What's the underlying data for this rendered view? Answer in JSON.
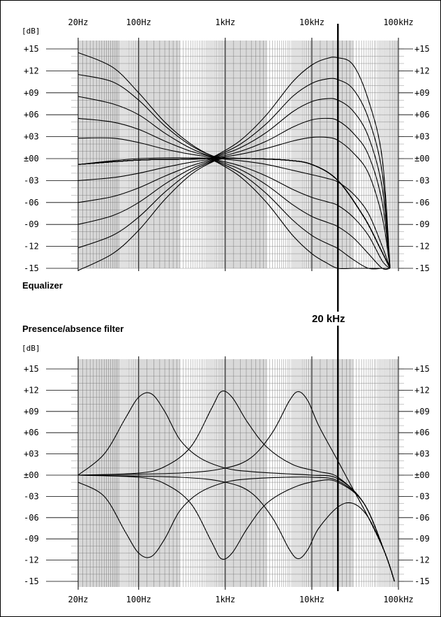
{
  "chart_data": [
    {
      "type": "line",
      "title": "Equalizer",
      "ylabel": "[dB]",
      "xscale": "log",
      "x_tick_labels": [
        "20Hz",
        "100Hz",
        "1kHz",
        "10kHz",
        "100kHz"
      ],
      "x_ticks": [
        20,
        100,
        1000,
        10000,
        100000
      ],
      "xlim": [
        20,
        100000
      ],
      "y_tick_labels": [
        "+15",
        "+12",
        "+09",
        "+06",
        "+03",
        "±00",
        "-03",
        "-06",
        "-09",
        "-12",
        "-15"
      ],
      "y_ticks": [
        15,
        12,
        9,
        6,
        3,
        0,
        -3,
        -6,
        -9,
        -12,
        -15
      ],
      "ylim": [
        -15,
        15
      ],
      "grid": true,
      "bass_curves": [
        {
          "x": [
            20,
            50,
            100,
            200,
            400,
            700,
            1000,
            2000,
            5000,
            10000,
            20000,
            40000,
            60000,
            80000
          ],
          "y": [
            14.5,
            12.5,
            9.0,
            5.0,
            2.0,
            0.4,
            0.1,
            0.0,
            -0.2,
            -0.8,
            -3.0,
            -8.0,
            -12.0,
            -15.0
          ]
        },
        {
          "x": [
            20,
            50,
            100,
            200,
            400,
            700,
            1000,
            2000,
            5000,
            10000,
            20000,
            40000,
            60000,
            80000
          ],
          "y": [
            11.5,
            10.5,
            8.0,
            4.5,
            1.8,
            0.4,
            0.1,
            0.0,
            -0.2,
            -0.8,
            -3.0,
            -8.0,
            -12.0,
            -15.0
          ]
        },
        {
          "x": [
            20,
            50,
            100,
            200,
            400,
            700,
            1000,
            2000,
            5000,
            10000,
            20000,
            40000,
            60000,
            80000
          ],
          "y": [
            8.5,
            7.5,
            6.0,
            3.5,
            1.4,
            0.3,
            0.1,
            0.0,
            -0.2,
            -0.8,
            -3.0,
            -8.0,
            -12.0,
            -15.0
          ]
        },
        {
          "x": [
            20,
            50,
            100,
            200,
            400,
            700,
            1000,
            2000,
            5000,
            10000,
            20000,
            40000,
            60000,
            80000
          ],
          "y": [
            5.5,
            5.0,
            4.0,
            2.4,
            1.0,
            0.3,
            0.1,
            0.0,
            -0.2,
            -0.8,
            -3.0,
            -8.0,
            -12.0,
            -15.0
          ]
        },
        {
          "x": [
            20,
            50,
            100,
            200,
            400,
            700,
            1000,
            2000,
            5000,
            10000,
            20000,
            40000,
            60000,
            80000
          ],
          "y": [
            2.8,
            2.8,
            2.2,
            1.3,
            0.6,
            0.2,
            0.1,
            0.0,
            -0.2,
            -0.8,
            -3.0,
            -8.0,
            -12.0,
            -15.0
          ]
        },
        {
          "x": [
            20,
            50,
            100,
            200,
            400,
            700,
            1000,
            2000,
            5000,
            10000,
            20000,
            40000,
            60000,
            80000
          ],
          "y": [
            -0.8,
            -0.3,
            0.0,
            0.1,
            0.1,
            0.1,
            0.1,
            0.0,
            -0.2,
            -0.8,
            -3.0,
            -8.0,
            -12.0,
            -15.0
          ]
        },
        {
          "x": [
            20,
            50,
            100,
            200,
            400,
            700,
            1000,
            2000,
            5000,
            10000,
            20000,
            40000,
            60000,
            80000
          ],
          "y": [
            -3.0,
            -2.6,
            -2.0,
            -1.2,
            -0.5,
            -0.1,
            0.0,
            0.0,
            -0.2,
            -0.8,
            -3.0,
            -8.0,
            -12.0,
            -15.0
          ]
        },
        {
          "x": [
            20,
            50,
            100,
            200,
            400,
            700,
            1000,
            2000,
            5000,
            10000,
            20000,
            40000,
            60000,
            80000
          ],
          "y": [
            -6.0,
            -5.2,
            -4.0,
            -2.4,
            -1.0,
            -0.2,
            0.0,
            0.0,
            -0.2,
            -0.8,
            -3.0,
            -8.0,
            -12.0,
            -15.0
          ]
        },
        {
          "x": [
            20,
            50,
            100,
            200,
            400,
            700,
            1000,
            2000,
            5000,
            10000,
            20000,
            40000,
            60000,
            80000
          ],
          "y": [
            -9.0,
            -7.8,
            -6.0,
            -3.5,
            -1.4,
            -0.3,
            0.0,
            0.0,
            -0.2,
            -0.8,
            -3.0,
            -8.0,
            -12.0,
            -15.0
          ]
        },
        {
          "x": [
            20,
            50,
            100,
            200,
            400,
            700,
            1000,
            2000,
            5000,
            10000,
            20000,
            40000,
            60000,
            80000
          ],
          "y": [
            -12.2,
            -10.5,
            -8.0,
            -4.6,
            -1.8,
            -0.4,
            0.0,
            0.0,
            -0.2,
            -0.8,
            -3.0,
            -8.0,
            -12.0,
            -15.0
          ]
        },
        {
          "x": [
            20,
            50,
            100,
            200,
            400,
            700,
            1000,
            2000,
            5000,
            10000,
            20000,
            40000,
            60000,
            80000
          ],
          "y": [
            -15.3,
            -13.0,
            -9.8,
            -5.6,
            -2.2,
            -0.5,
            0.0,
            0.0,
            -0.2,
            -0.8,
            -3.0,
            -8.0,
            -12.0,
            -15.0
          ]
        }
      ],
      "treble_curves": [
        {
          "x": [
            20,
            100,
            300,
            600,
            800,
            1500,
            3000,
            6000,
            10000,
            15000,
            20000,
            30000,
            45000,
            65000,
            80000
          ],
          "y": [
            -0.8,
            -0.2,
            -0.1,
            0.0,
            0.5,
            2.5,
            6.0,
            10.5,
            12.8,
            13.7,
            13.8,
            12.8,
            8.0,
            0.0,
            -15.0
          ]
        },
        {
          "x": [
            20,
            100,
            300,
            600,
            800,
            1500,
            3000,
            6000,
            10000,
            15000,
            20000,
            30000,
            45000,
            65000,
            80000
          ],
          "y": [
            -0.8,
            -0.2,
            -0.1,
            0.0,
            0.4,
            2.0,
            4.8,
            8.5,
            10.3,
            10.9,
            10.8,
            9.5,
            5.5,
            -2.0,
            -15.0
          ]
        },
        {
          "x": [
            20,
            100,
            300,
            600,
            800,
            1500,
            3000,
            6000,
            10000,
            15000,
            20000,
            30000,
            45000,
            65000,
            80000
          ],
          "y": [
            -0.8,
            -0.2,
            -0.1,
            0.0,
            0.3,
            1.5,
            3.6,
            6.4,
            7.8,
            8.2,
            8.0,
            6.5,
            3.0,
            -4.0,
            -15.0
          ]
        },
        {
          "x": [
            20,
            100,
            300,
            600,
            800,
            1500,
            3000,
            6000,
            10000,
            15000,
            20000,
            30000,
            45000,
            65000,
            80000
          ],
          "y": [
            -0.8,
            -0.2,
            -0.1,
            0.0,
            0.2,
            1.0,
            2.4,
            4.3,
            5.3,
            5.5,
            5.2,
            3.5,
            0.5,
            -6.0,
            -15.0
          ]
        },
        {
          "x": [
            20,
            100,
            300,
            600,
            800,
            1500,
            3000,
            6000,
            10000,
            15000,
            20000,
            30000,
            45000,
            65000,
            80000
          ],
          "y": [
            -0.8,
            -0.2,
            -0.1,
            0.0,
            0.1,
            0.6,
            1.4,
            2.4,
            2.9,
            2.9,
            2.5,
            0.8,
            -2.0,
            -8.0,
            -15.0
          ]
        },
        {
          "x": [
            20,
            100,
            300,
            600,
            800,
            1500,
            3000,
            6000,
            10000,
            15000,
            20000,
            30000,
            45000,
            65000,
            80000
          ],
          "y": [
            -0.8,
            -0.2,
            -0.1,
            0.0,
            0.0,
            -0.3,
            -0.8,
            -1.6,
            -2.2,
            -2.7,
            -3.2,
            -4.8,
            -7.5,
            -12.0,
            -15.0
          ]
        },
        {
          "x": [
            20,
            100,
            300,
            600,
            800,
            1500,
            3000,
            6000,
            10000,
            15000,
            20000,
            30000,
            45000,
            65000,
            80000
          ],
          "y": [
            -0.8,
            -0.2,
            -0.1,
            0.0,
            -0.2,
            -1.0,
            -2.4,
            -4.2,
            -5.3,
            -5.9,
            -6.4,
            -8.0,
            -10.5,
            -14.0,
            -15.0
          ]
        },
        {
          "x": [
            20,
            100,
            300,
            600,
            800,
            1500,
            3000,
            6000,
            10000,
            15000,
            20000,
            30000,
            45000,
            65000,
            80000
          ],
          "y": [
            -0.8,
            -0.2,
            -0.1,
            0.0,
            -0.3,
            -1.5,
            -3.6,
            -6.3,
            -7.9,
            -8.7,
            -9.3,
            -10.8,
            -13.0,
            -15.0,
            -15.0
          ]
        },
        {
          "x": [
            20,
            100,
            300,
            600,
            800,
            1500,
            3000,
            6000,
            10000,
            15000,
            20000,
            30000,
            45000,
            65000,
            80000
          ],
          "y": [
            -0.8,
            -0.2,
            -0.1,
            0.0,
            -0.4,
            -2.0,
            -4.8,
            -8.4,
            -10.5,
            -11.6,
            -12.3,
            -13.8,
            -15.0,
            -15.0,
            -15.0
          ]
        },
        {
          "x": [
            20,
            100,
            300,
            600,
            800,
            1500,
            3000,
            6000,
            10000,
            15000,
            20000,
            30000,
            45000,
            65000,
            80000
          ],
          "y": [
            -0.8,
            -0.2,
            -0.1,
            0.0,
            -0.5,
            -2.5,
            -6.0,
            -10.5,
            -13.0,
            -14.3,
            -15.0,
            -15.0,
            -15.0,
            -15.0,
            -15.0
          ]
        }
      ]
    },
    {
      "type": "line",
      "title": "Presence/absence filter",
      "ylabel": "[dB]",
      "xscale": "log",
      "x_tick_labels": [
        "20Hz",
        "100Hz",
        "1kHz",
        "10kHz",
        "100kHz"
      ],
      "x_ticks": [
        20,
        100,
        1000,
        10000,
        100000
      ],
      "xlim": [
        20,
        100000
      ],
      "y_tick_labels": [
        "+15",
        "+12",
        "+09",
        "+06",
        "+03",
        "±00",
        "-03",
        "-06",
        "-09",
        "-12",
        "-15"
      ],
      "y_ticks": [
        15,
        12,
        9,
        6,
        3,
        0,
        -3,
        -6,
        -9,
        -12,
        -15
      ],
      "ylim": [
        -15,
        15
      ],
      "grid": true,
      "curves": [
        {
          "x": [
            20,
            40,
            70,
            100,
            140,
            200,
            300,
            500,
            1000,
            2000,
            5000,
            10000,
            20000,
            40000,
            70000,
            90000
          ],
          "y": [
            0.0,
            3.0,
            8.0,
            11.0,
            11.5,
            9.0,
            5.0,
            2.5,
            1.0,
            0.5,
            0.2,
            0.0,
            -0.5,
            -4.0,
            -11.0,
            -15.0
          ]
        },
        {
          "x": [
            20,
            40,
            70,
            100,
            140,
            200,
            300,
            500,
            1000,
            2000,
            5000,
            10000,
            20000,
            40000,
            70000,
            90000
          ],
          "y": [
            -1.0,
            -3.0,
            -8.0,
            -11.0,
            -11.5,
            -9.0,
            -5.0,
            -2.5,
            -1.0,
            -0.5,
            -0.3,
            -0.3,
            -0.8,
            -4.0,
            -11.0,
            -15.0
          ]
        },
        {
          "x": [
            20,
            100,
            200,
            400,
            700,
            900,
            1200,
            1800,
            3000,
            6000,
            12000,
            20000,
            40000,
            70000,
            90000
          ],
          "y": [
            0.0,
            0.3,
            1.2,
            4.0,
            9.5,
            11.8,
            11.0,
            7.5,
            4.0,
            1.5,
            0.5,
            -0.3,
            -4.0,
            -11.0,
            -15.0
          ]
        },
        {
          "x": [
            20,
            100,
            200,
            400,
            700,
            900,
            1200,
            1800,
            3000,
            6000,
            12000,
            20000,
            40000,
            70000,
            90000
          ],
          "y": [
            0.0,
            -0.3,
            -1.2,
            -4.0,
            -9.5,
            -11.8,
            -11.0,
            -7.5,
            -4.0,
            -1.8,
            -0.8,
            -1.0,
            -4.0,
            -11.0,
            -15.0
          ]
        },
        {
          "x": [
            20,
            300,
            1000,
            2000,
            3500,
            5500,
            7000,
            9000,
            12000,
            20000,
            30000,
            45000,
            70000,
            90000
          ],
          "y": [
            0.0,
            0.3,
            1.0,
            2.5,
            6.0,
            10.5,
            11.8,
            10.5,
            7.0,
            2.0,
            -2.0,
            -6.0,
            -11.0,
            -15.0
          ]
        },
        {
          "x": [
            20,
            300,
            1000,
            2000,
            3500,
            5500,
            7000,
            9000,
            12000,
            20000,
            30000,
            45000,
            70000,
            90000
          ],
          "y": [
            0.0,
            -0.3,
            -1.0,
            -2.5,
            -6.0,
            -10.5,
            -11.8,
            -10.5,
            -7.5,
            -4.5,
            -4.0,
            -6.0,
            -11.0,
            -15.0
          ]
        }
      ]
    }
  ],
  "unit_label": "[dB]",
  "chart1_title": "Equalizer",
  "chart2_title": "Presence/absence filter",
  "marker_label": "20 kHz",
  "marker_freq": 20000,
  "x_tick_labels": [
    "20Hz",
    "100Hz",
    "1kHz",
    "10kHz",
    "100kHz"
  ],
  "y_tick_labels": [
    "+15",
    "+12",
    "+09",
    "+06",
    "+03",
    "±00",
    "-03",
    "-06",
    "-09",
    "-12",
    "-15"
  ]
}
